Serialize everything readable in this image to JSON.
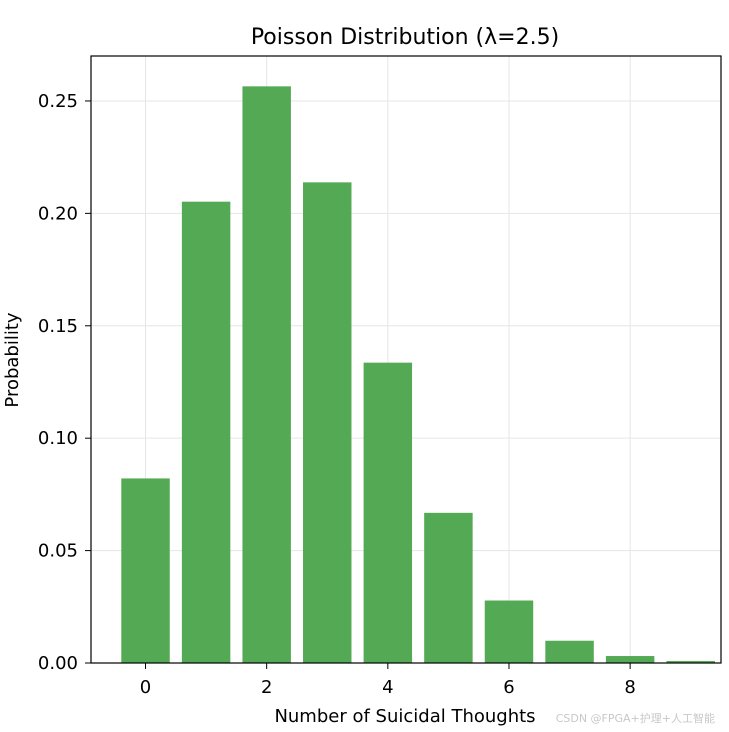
{
  "chart_data": {
    "type": "bar",
    "title": "Poisson Distribution (λ=2.5)",
    "xlabel": "Number of Suicidal Thoughts",
    "ylabel": "Probability",
    "categories": [
      0,
      1,
      2,
      3,
      4,
      5,
      6,
      7,
      8,
      9
    ],
    "values": [
      0.0821,
      0.2052,
      0.2565,
      0.2138,
      0.1336,
      0.0668,
      0.0278,
      0.0099,
      0.0031,
      0.0009
    ],
    "xlim": [
      -0.9,
      9.5
    ],
    "ylim": [
      0,
      0.27
    ],
    "xticks": [
      0,
      2,
      4,
      6,
      8
    ],
    "xtick_labels": [
      "0",
      "2",
      "4",
      "6",
      "8"
    ],
    "yticks": [
      0.0,
      0.05,
      0.1,
      0.15,
      0.2,
      0.25
    ],
    "ytick_labels": [
      "0.00",
      "0.05",
      "0.10",
      "0.15",
      "0.20",
      "0.25"
    ],
    "grid": true,
    "bar_color": "#4ea64e",
    "grid_color": "#e6e6e6"
  },
  "watermark": "CSDN @FPGA+护理+人工智能"
}
